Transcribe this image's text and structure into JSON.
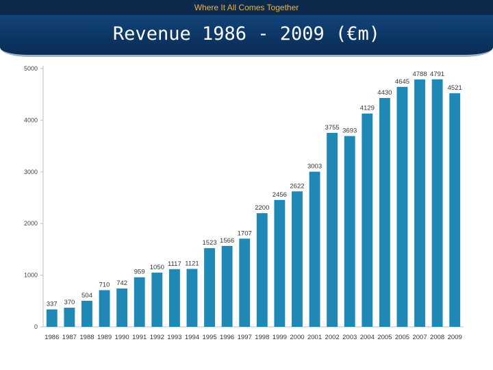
{
  "header": {
    "tagline": "Where It All Comes Together",
    "title": "Revenue 1986 - 2009 (€m)"
  },
  "colors": {
    "bar": "#1f88b4",
    "axis": "#bfbfbf"
  },
  "chart_data": {
    "type": "bar",
    "title": "Revenue 1986 - 2009 (€m)",
    "categories": [
      "1986",
      "1987",
      "1988",
      "1989",
      "1990",
      "1991",
      "1992",
      "1993",
      "1994",
      "1995",
      "1996",
      "1997",
      "1998",
      "1999",
      "2000",
      "2001",
      "2002",
      "2003",
      "2004",
      "2005",
      "2005",
      "2007",
      "2008",
      "2009"
    ],
    "values": [
      337,
      370,
      504,
      710,
      742,
      959,
      1050,
      1117,
      1121,
      1523,
      1566,
      1707,
      2200,
      2456,
      2622,
      3003,
      3755,
      3693,
      4129,
      4430,
      4645,
      4788,
      4791,
      4521
    ],
    "data_labels": [
      "337",
      "370",
      "504",
      "710",
      "742",
      "959",
      "1050",
      "1117",
      "1121",
      "1523",
      "1566",
      "1707",
      "2200",
      "2456",
      "2622",
      "3003",
      "3755",
      "3693",
      "4129",
      "4430",
      "4645",
      "4788",
      "4791",
      "4521"
    ],
    "yticks": [
      0,
      1000,
      2000,
      3000,
      4000,
      5000
    ],
    "ytick_labels": [
      "0",
      "1000",
      "2000",
      "3000",
      "4000",
      "5000"
    ],
    "ylim": [
      0,
      5000
    ],
    "xlabel": "",
    "ylabel": "",
    "grid": false,
    "legend": "none"
  }
}
